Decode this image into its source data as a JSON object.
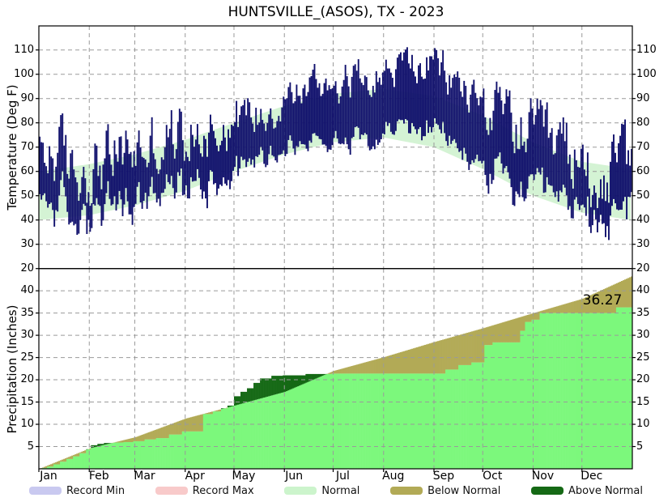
{
  "title": "HUNTSVILLE_(ASOS), TX - 2023",
  "annotation": {
    "text": "36.27"
  },
  "axes": {
    "temp": {
      "label": "Temperature (Deg F)",
      "ticks": [
        110,
        100,
        90,
        80,
        70,
        60,
        50,
        40,
        30,
        20
      ],
      "range": [
        20,
        120
      ]
    },
    "precip": {
      "label": "Precipitation (Inches)",
      "ticks": [
        40,
        35,
        30,
        25,
        20,
        15,
        10,
        5
      ],
      "range": [
        0,
        45
      ]
    },
    "months": [
      "Jan",
      "Feb",
      "Mar",
      "Apr",
      "May",
      "Jun",
      "Jul",
      "Aug",
      "Sep",
      "Oct",
      "Nov",
      "Dec"
    ],
    "month_start_days": [
      0,
      31,
      59,
      90,
      120,
      151,
      181,
      212,
      243,
      273,
      304,
      334
    ]
  },
  "legend": {
    "items": [
      {
        "label": "Record Min",
        "color": "#c9c9f0"
      },
      {
        "label": "Record Max",
        "color": "#f8caca"
      },
      {
        "label": "Normal",
        "color": "#ccf4cc"
      },
      {
        "label": "Below Normal",
        "color": "#b2aa56"
      },
      {
        "label": "Above Normal",
        "color": "#156915"
      }
    ]
  },
  "colors": {
    "daily_temp_bar": "#10106c",
    "normal_band": "#d4f3d4",
    "precip_actual_fill": "#7cf87c",
    "precip_below_normal": "#b2aa56",
    "precip_above_normal": "#156915",
    "grid": "#9a9a9a",
    "frame": "#000000"
  },
  "chart_data": [
    {
      "type": "bar",
      "panel": "temperature",
      "title": "Daily high/low temperature range over climatological normal band",
      "x_unit": "day_of_year_2023",
      "ylabel": "Temperature (Deg F)",
      "ylim": [
        20,
        120
      ],
      "normal_band": {
        "days": [
          0,
          31,
          59,
          90,
          120,
          151,
          181,
          212,
          243,
          273,
          304,
          334,
          364
        ],
        "normal_low": [
          40,
          42,
          46,
          52,
          60,
          67,
          72,
          74,
          70,
          61,
          50,
          43,
          40
        ],
        "normal_high": [
          60,
          63,
          67,
          73,
          80,
          87,
          92,
          94,
          91,
          83,
          72,
          64,
          61
        ]
      },
      "daily_mean_anchors": {
        "days": [
          0,
          10,
          20,
          31,
          45,
          59,
          74,
          90,
          105,
          120,
          135,
          151,
          166,
          181,
          196,
          212,
          227,
          243,
          252,
          258,
          273,
          288,
          304,
          319,
          334,
          349,
          357,
          364
        ],
        "highs": [
          63,
          70,
          58,
          62,
          66,
          69,
          72,
          75,
          78,
          82,
          85,
          90,
          95,
          97,
          99,
          101,
          104,
          103,
          99,
          95,
          88,
          80,
          72,
          68,
          63,
          58,
          60,
          66
        ],
        "lows": [
          45,
          50,
          38,
          42,
          44,
          47,
          50,
          54,
          57,
          62,
          66,
          69,
          72,
          74,
          75,
          77,
          79,
          76,
          72,
          68,
          62,
          55,
          48,
          46,
          43,
          40,
          41,
          46
        ]
      },
      "observed_extremes": {
        "max_high": 112,
        "min_low": 28
      },
      "noise": {
        "seed": 1234567,
        "amp_days": [
          0,
          90,
          151,
          212,
          258,
          304,
          364
        ],
        "amps": [
          8.5,
          7.0,
          4.5,
          4.0,
          5.0,
          8.0,
          8.5
        ],
        "persistence": 0.6
      }
    },
    {
      "type": "area",
      "panel": "precipitation",
      "title": "Accumulated precipitation: actual vs normal",
      "x_unit": "day_of_year_2023",
      "ylabel": "Precipitation (Inches)",
      "ylim": [
        0,
        45
      ],
      "final_actual": 36.27,
      "normal_cumulative": {
        "days": [
          0,
          31,
          59,
          90,
          120,
          151,
          181,
          212,
          243,
          273,
          304,
          334,
          364
        ],
        "values": [
          0,
          4.6,
          7.1,
          11.3,
          14.2,
          17.3,
          22.0,
          25.1,
          28.5,
          31.6,
          35.0,
          38.2,
          43.2
        ]
      },
      "actual_cumulative_steps": [
        [
          0,
          0
        ],
        [
          2,
          0.2
        ],
        [
          5,
          0.5
        ],
        [
          9,
          1.0
        ],
        [
          13,
          1.6
        ],
        [
          17,
          2.2
        ],
        [
          21,
          2.8
        ],
        [
          25,
          3.5
        ],
        [
          29,
          4.4
        ],
        [
          32,
          5.3
        ],
        [
          36,
          5.6
        ],
        [
          40,
          5.8
        ],
        [
          46,
          5.9
        ],
        [
          52,
          6.0
        ],
        [
          58,
          6.2
        ],
        [
          65,
          6.6
        ],
        [
          72,
          6.9
        ],
        [
          80,
          7.7
        ],
        [
          88,
          8.4
        ],
        [
          101,
          12.3
        ],
        [
          107,
          12.9
        ],
        [
          112,
          13.6
        ],
        [
          116,
          14.2
        ],
        [
          120,
          16.3
        ],
        [
          124,
          17.3
        ],
        [
          128,
          18.1
        ],
        [
          132,
          19.3
        ],
        [
          136,
          20.3
        ],
        [
          143,
          20.9
        ],
        [
          150,
          21.0
        ],
        [
          164,
          21.3
        ],
        [
          180,
          21.4
        ],
        [
          250,
          22.3
        ],
        [
          258,
          23.3
        ],
        [
          266,
          23.9
        ],
        [
          274,
          27.8
        ],
        [
          279,
          28.4
        ],
        [
          296,
          31.0
        ],
        [
          299,
          33.0
        ],
        [
          303,
          33.5
        ],
        [
          308,
          35.0
        ],
        [
          355,
          36.27
        ]
      ]
    }
  ]
}
